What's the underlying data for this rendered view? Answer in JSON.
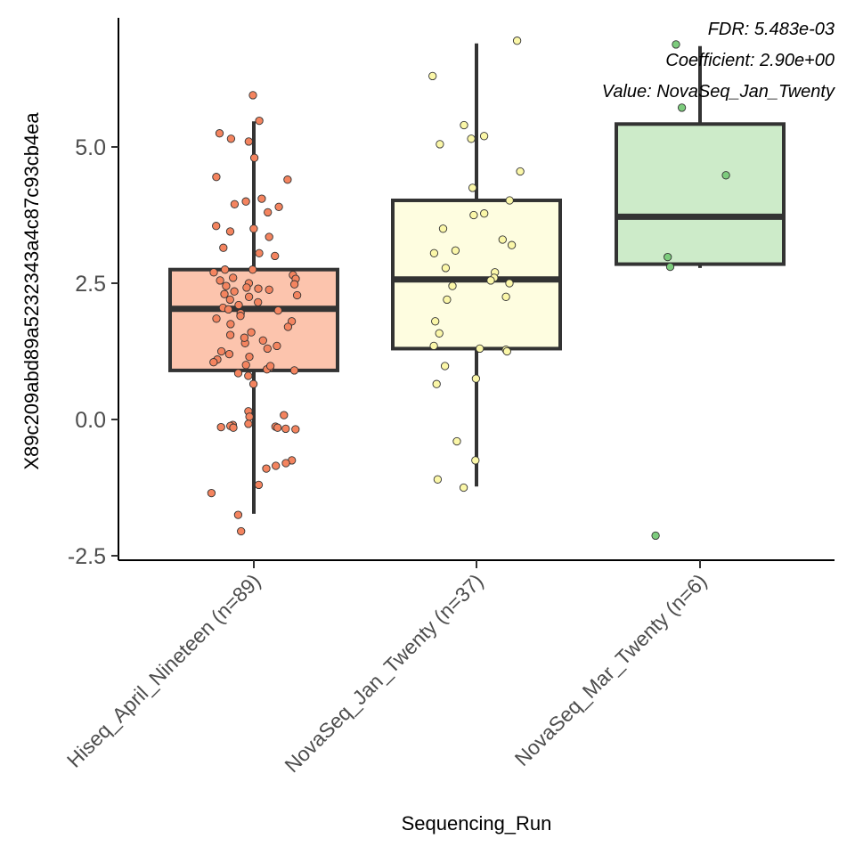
{
  "chart_data": {
    "type": "box",
    "title": "",
    "xlabel": "Sequencing_Run",
    "ylabel": "X89c209abd89a5232343a4c87c93cb4ea",
    "ylim": [
      -2.6,
      7.2
    ],
    "yticks": [
      -2.5,
      0.0,
      2.5,
      5.0
    ],
    "ytick_labels": [
      "-2.5",
      "0.0",
      "2.5",
      "5.0"
    ],
    "grid": false,
    "legend": "none",
    "categories": [
      "Hiseq_April_Nineteen (n=89)",
      "NovaSeq_Jan_Twenty (n=37)",
      "NovaSeq_Mar_Twenty (n=6)"
    ],
    "annotations": [
      "FDR: 5.483e-03",
      "Coefficient: 2.90e+00",
      "Value: NovaSeq_Jan_Twenty"
    ],
    "series": [
      {
        "category": "Hiseq_April_Nineteen (n=89)",
        "fill": "#fcc4ad",
        "point_color": "#f4845f",
        "q1": 0.9,
        "median": 2.03,
        "q3": 2.75,
        "whisker_low": -1.73,
        "whisker_high": 5.47,
        "points": [
          5.95,
          5.48,
          5.25,
          5.15,
          5.1,
          4.8,
          4.45,
          4.4,
          4.05,
          4.0,
          3.95,
          3.9,
          3.8,
          3.55,
          3.5,
          3.45,
          3.35,
          3.15,
          3.05,
          2.75,
          2.75,
          2.7,
          2.65,
          2.58,
          2.55,
          2.5,
          2.48,
          2.45,
          2.42,
          2.4,
          2.38,
          2.35,
          2.3,
          2.28,
          2.25,
          2.2,
          2.15,
          2.1,
          2.05,
          2.0,
          1.95,
          1.9,
          1.85,
          1.8,
          1.75,
          1.7,
          1.6,
          1.55,
          1.45,
          1.4,
          1.35,
          1.3,
          1.25,
          1.2,
          1.15,
          1.1,
          1.05,
          1.0,
          0.95,
          0.92,
          0.9,
          0.85,
          0.8,
          0.65,
          0.15,
          0.08,
          0.05,
          -0.08,
          -0.1,
          -0.12,
          -0.13,
          -0.14,
          -0.15,
          -0.15,
          -0.17,
          -0.18,
          -0.75,
          -0.8,
          -0.85,
          -0.9,
          -1.2,
          -1.35,
          -1.75,
          -2.05,
          2.02,
          1.5,
          0.98,
          3.0,
          2.6
        ]
      },
      {
        "category": "NovaSeq_Jan_Twenty (n=37)",
        "fill": "#fefde0",
        "point_color": "#fbf7a8",
        "q1": 1.3,
        "median": 2.57,
        "q3": 4.02,
        "whisker_low": -1.23,
        "whisker_high": 6.9,
        "points": [
          6.95,
          6.3,
          5.4,
          5.2,
          5.15,
          5.05,
          4.55,
          4.25,
          4.02,
          3.78,
          3.75,
          3.5,
          3.3,
          3.2,
          3.1,
          3.05,
          2.78,
          2.7,
          2.6,
          2.55,
          2.5,
          2.45,
          2.25,
          2.2,
          1.8,
          1.58,
          1.35,
          1.3,
          1.28,
          1.25,
          0.98,
          0.75,
          0.65,
          -0.4,
          -0.75,
          -1.1,
          -1.25
        ]
      },
      {
        "category": "NovaSeq_Mar_Twenty (n=6)",
        "fill": "#cdebc9",
        "point_color": "#7dcc7d",
        "q1": 2.85,
        "median": 3.72,
        "q3": 5.42,
        "whisker_low": 2.78,
        "whisker_high": 6.85,
        "points": [
          6.88,
          5.72,
          4.48,
          2.98,
          2.8,
          -2.13
        ]
      }
    ]
  }
}
